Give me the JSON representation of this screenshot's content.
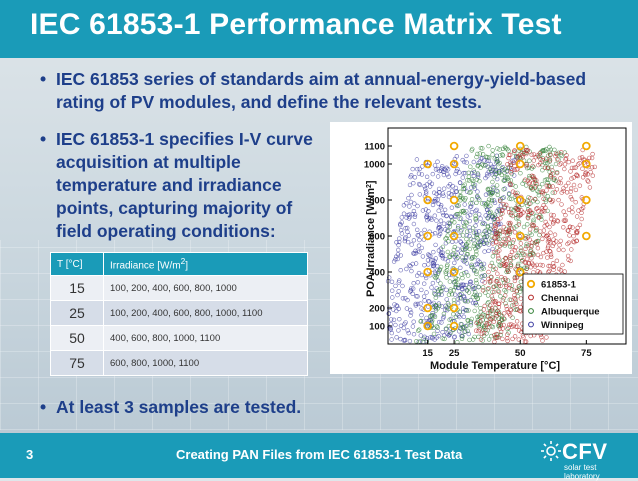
{
  "slide": {
    "title": "IEC 61853-1 Performance Matrix Test",
    "bullets": [
      "IEC 61853 series of standards aim at annual-energy-yield-based rating of PV modules, and define the relevant tests.",
      "IEC 61853-1 specifies I-V curve acquisition at multiple temperature and irradiance points, capturing majority of field operating conditions:",
      "At least 3 samples are tested."
    ],
    "bullet_symbol": "•"
  },
  "table": {
    "headers": [
      "T [°C]",
      "Irradiance [W/m",
      "2",
      "]"
    ],
    "rows": [
      {
        "t": "15",
        "irr": "100, 200, 400, 600, 800, 1000"
      },
      {
        "t": "25",
        "irr": "100, 200, 400, 600, 800, 1000, 1100"
      },
      {
        "t": "50",
        "irr": "400, 600, 800, 1000, 1100"
      },
      {
        "t": "75",
        "irr": "600, 800, 1000, 1100"
      }
    ]
  },
  "chart_data": {
    "type": "scatter",
    "xlabel": "Module Temperature [°C]",
    "ylabel": "POA Irradiance [W/m²]",
    "ylabel_parts": [
      "POA Irradiance [W/m",
      "2",
      "]"
    ],
    "x_ticks": [
      15,
      25,
      50,
      75
    ],
    "y_ticks": [
      100,
      200,
      400,
      600,
      800,
      1000,
      1100
    ],
    "xlim": [
      0,
      90
    ],
    "ylim": [
      0,
      1200
    ],
    "legend_position": "bottom-right",
    "series": [
      {
        "name": "61853-1",
        "color": "#f2a900",
        "points": [
          [
            15,
            100
          ],
          [
            15,
            200
          ],
          [
            15,
            400
          ],
          [
            15,
            600
          ],
          [
            15,
            800
          ],
          [
            15,
            1000
          ],
          [
            25,
            100
          ],
          [
            25,
            200
          ],
          [
            25,
            400
          ],
          [
            25,
            600
          ],
          [
            25,
            800
          ],
          [
            25,
            1000
          ],
          [
            25,
            1100
          ],
          [
            50,
            400
          ],
          [
            50,
            600
          ],
          [
            50,
            800
          ],
          [
            50,
            1000
          ],
          [
            50,
            1100
          ],
          [
            75,
            600
          ],
          [
            75,
            800
          ],
          [
            75,
            1000
          ],
          [
            75,
            1100
          ]
        ]
      },
      {
        "name": "Chennai",
        "color": "#b22222",
        "band": {
          "x_at_low": [
            32,
            62
          ],
          "x_at_high": [
            46,
            80
          ],
          "y_range": [
            10,
            1080
          ]
        }
      },
      {
        "name": "Albuquerque",
        "color": "#2e7d32",
        "band": {
          "x_at_low": [
            10,
            45
          ],
          "x_at_high": [
            32,
            68
          ],
          "y_range": [
            10,
            1100
          ]
        }
      },
      {
        "name": "Winnipeg",
        "color": "#3a3aa0",
        "band": {
          "x_at_low": [
            -5,
            30
          ],
          "x_at_high": [
            10,
            50
          ],
          "y_range": [
            10,
            1050
          ]
        }
      }
    ]
  },
  "footer": {
    "page": "3",
    "title": "Creating PAN Files from IEC 61853-1 Test Data",
    "logo_text": "CFV",
    "logo_sub": "solar test laboratory"
  },
  "colors": {
    "accent": "#1a9bb8",
    "text": "#1e3f8a"
  }
}
